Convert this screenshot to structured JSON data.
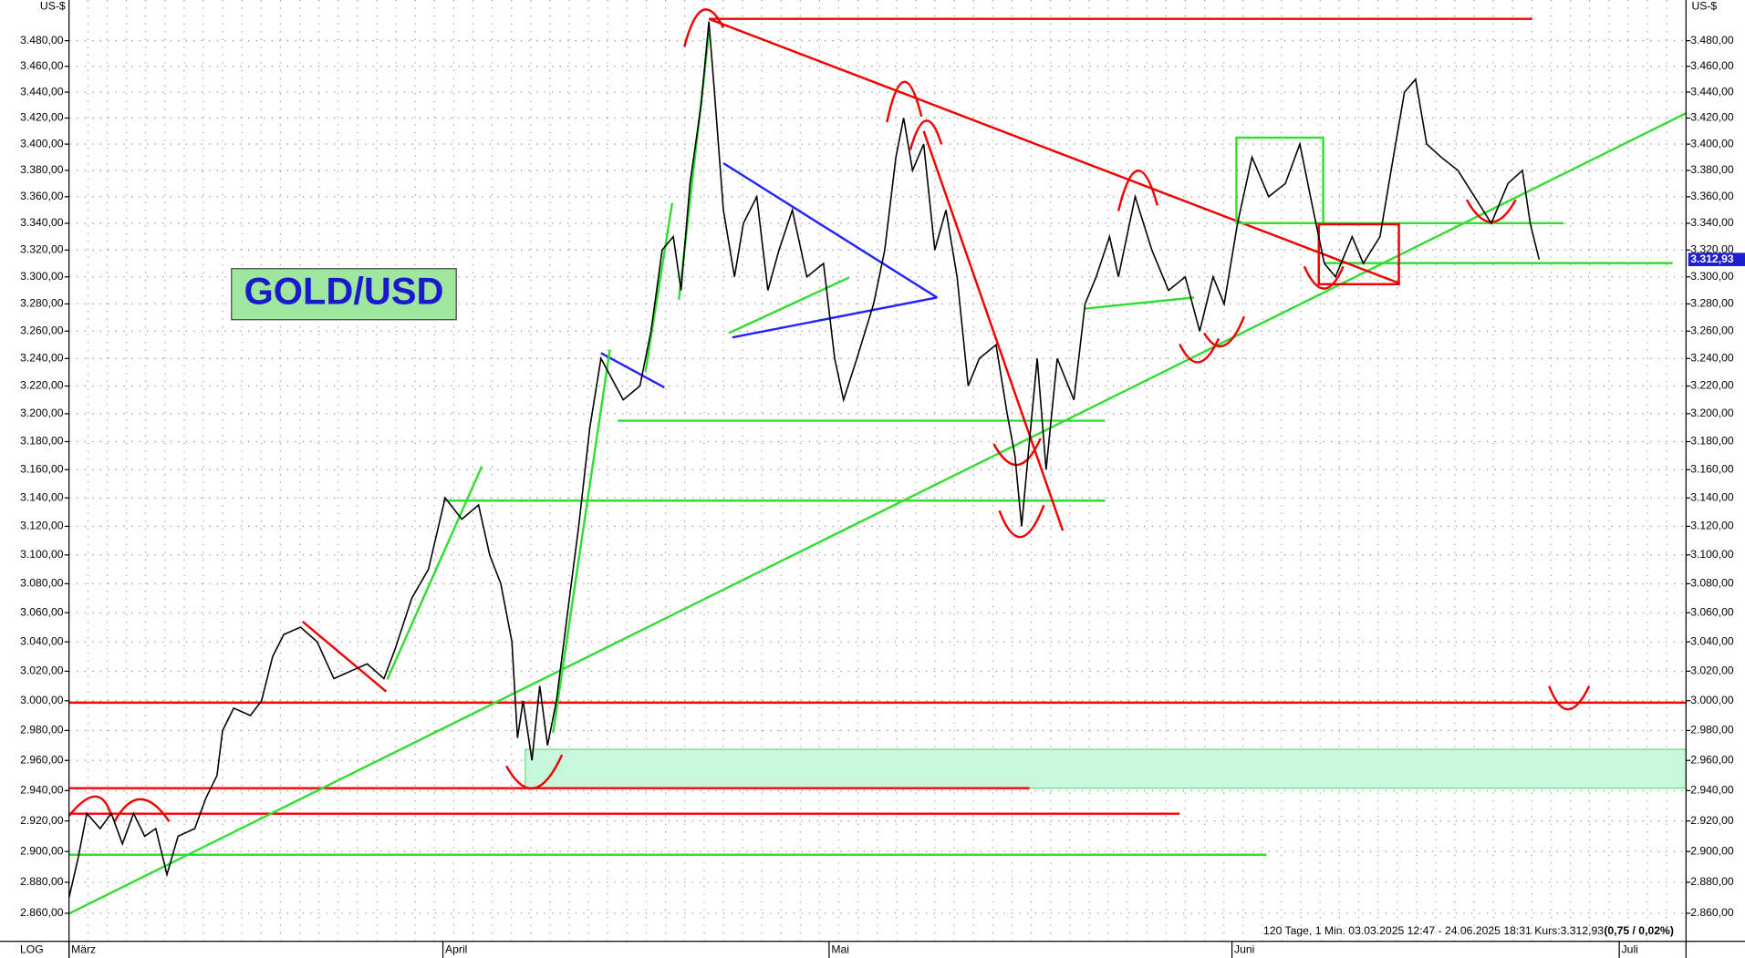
{
  "chart_data": {
    "type": "line",
    "log_scale": true,
    "grid": true,
    "color": "#000000",
    "box_label": "GOLD/USD",
    "y_unit_left": "US-$",
    "y_unit_right": "US-$",
    "scale_label": "LOG",
    "footer": "120 Tage, 1 Min. 03.03.2025 12:47 - 24.06.2025 18:31 Kurs:3.312,93",
    "footer_change": "(0,75 / 0,02%)",
    "last_value_label": {
      "value": 3312.93,
      "label": "3.312,93"
    },
    "xlim": [
      0,
      145.3
    ],
    "xticks": [
      {
        "value": 0,
        "label": "März"
      },
      {
        "value": 33.6,
        "label": "April"
      },
      {
        "value": 68.3,
        "label": "Mai"
      },
      {
        "value": 104.5,
        "label": "Juni"
      },
      {
        "value": 139.3,
        "label": "Juli"
      }
    ],
    "ylim": [
      2842,
      3512
    ],
    "yticks": [
      {
        "value": 2860,
        "label": "2.860,00"
      },
      {
        "value": 2880,
        "label": "2.880,00"
      },
      {
        "value": 2900,
        "label": "2.900,00"
      },
      {
        "value": 2920,
        "label": "2.920,00"
      },
      {
        "value": 2940,
        "label": "2.940,00"
      },
      {
        "value": 2960,
        "label": "2.960,00"
      },
      {
        "value": 2980,
        "label": "2.980,00"
      },
      {
        "value": 3000,
        "label": "3.000,00"
      },
      {
        "value": 3020,
        "label": "3.020,00"
      },
      {
        "value": 3040,
        "label": "3.040,00"
      },
      {
        "value": 3060,
        "label": "3.060,00"
      },
      {
        "value": 3080,
        "label": "3.080,00"
      },
      {
        "value": 3100,
        "label": "3.100,00"
      },
      {
        "value": 3120,
        "label": "3.120,00"
      },
      {
        "value": 3140,
        "label": "3.140,00"
      },
      {
        "value": 3160,
        "label": "3.160,00"
      },
      {
        "value": 3180,
        "label": "3.180,00"
      },
      {
        "value": 3200,
        "label": "3.200,00"
      },
      {
        "value": 3220,
        "label": "3.220,00"
      },
      {
        "value": 3240,
        "label": "3.240,00"
      },
      {
        "value": 3260,
        "label": "3.260,00"
      },
      {
        "value": 3280,
        "label": "3.280,00"
      },
      {
        "value": 3300,
        "label": "3.300,00"
      },
      {
        "value": 3320,
        "label": "3.320,00"
      },
      {
        "value": 3340,
        "label": "3.340,00"
      },
      {
        "value": 3360,
        "label": "3.360,00"
      },
      {
        "value": 3380,
        "label": "3.380,00"
      },
      {
        "value": 3400,
        "label": "3.400,00"
      },
      {
        "value": 3420,
        "label": "3.420,00"
      },
      {
        "value": 3440,
        "label": "3.440,00"
      },
      {
        "value": 3460,
        "label": "3.460,00"
      },
      {
        "value": 3480,
        "label": "3.480,00"
      }
    ],
    "x": [
      0,
      0.8,
      1.6,
      2.8,
      3.8,
      4.8,
      5.8,
      6.8,
      7.8,
      8.8,
      9.8,
      11.3,
      12.3,
      13.3,
      13.8,
      14.8,
      16.3,
      17.3,
      18.3,
      19.3,
      20.8,
      22.3,
      23.8,
      25.3,
      26.8,
      28.3,
      29.3,
      30.8,
      32.3,
      33.8,
      35.3,
      36.8,
      37.8,
      38.8,
      39.8,
      40.3,
      40.8,
      41.6,
      42.3,
      43,
      43.8,
      44.8,
      45.8,
      46.8,
      47.8,
      48.8,
      49.8,
      51.3,
      52.3,
      53.3,
      54.3,
      55,
      55.8,
      56.8,
      57.5,
      58,
      58.8,
      59.8,
      60.6,
      61.8,
      62.8,
      63.8,
      65,
      66.3,
      67.8,
      68.8,
      69.6,
      70.8,
      72.3,
      73.3,
      74.3,
      75,
      75.8,
      76.8,
      77.8,
      78.8,
      79.8,
      80.8,
      81.8,
      83.3,
      84.3,
      85,
      85.6,
      86.3,
      87,
      87.8,
      88.8,
      90.3,
      91.3,
      92.3,
      93.5,
      94.3,
      95.8,
      97.3,
      98.8,
      100.3,
      101.6,
      102.8,
      103.8,
      105,
      106.3,
      107.8,
      109.3,
      110.6,
      111.8,
      112.8,
      113.8,
      115.3,
      116.3,
      117.8,
      118.8,
      120,
      121,
      122,
      123.3,
      124.8,
      126.3,
      127.8,
      129.3,
      130.6,
      131.3,
      132.1
    ],
    "values": [
      2870,
      2895,
      2925,
      2915,
      2925,
      2905,
      2925,
      2910,
      2915,
      2885,
      2910,
      2915,
      2935,
      2950,
      2980,
      2995,
      2990,
      3000,
      3030,
      3045,
      3050,
      3040,
      3015,
      3020,
      3025,
      3015,
      3035,
      3070,
      3090,
      3140,
      3125,
      3135,
      3100,
      3080,
      3040,
      2975,
      3000,
      2960,
      3010,
      2970,
      3000,
      3060,
      3120,
      3190,
      3240,
      3225,
      3210,
      3220,
      3260,
      3320,
      3330,
      3290,
      3370,
      3430,
      3495,
      3440,
      3350,
      3300,
      3340,
      3360,
      3290,
      3320,
      3350,
      3300,
      3310,
      3240,
      3210,
      3240,
      3280,
      3320,
      3390,
      3420,
      3380,
      3400,
      3320,
      3350,
      3300,
      3220,
      3240,
      3250,
      3200,
      3170,
      3120,
      3180,
      3240,
      3160,
      3240,
      3210,
      3280,
      3300,
      3330,
      3300,
      3360,
      3320,
      3290,
      3300,
      3260,
      3300,
      3280,
      3340,
      3390,
      3360,
      3370,
      3400,
      3350,
      3310,
      3300,
      3330,
      3310,
      3330,
      3380,
      3440,
      3450,
      3400,
      3390,
      3380,
      3360,
      3340,
      3370,
      3380,
      3340,
      3312.93
    ]
  }
}
